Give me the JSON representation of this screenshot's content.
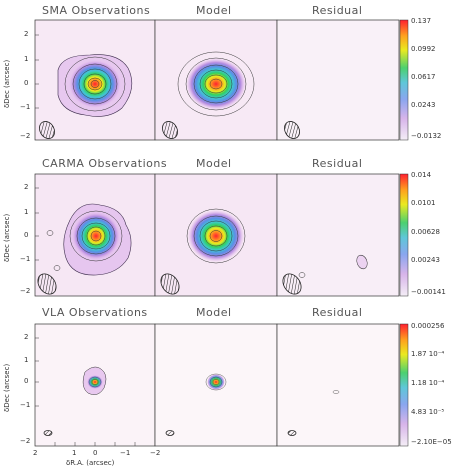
{
  "figure": {
    "col_titles_row1": [
      "SMA Observations",
      "Model",
      "Residual"
    ],
    "col_titles_row2": [
      "CARMA Observations",
      "Model",
      "Residual"
    ],
    "col_titles_row3": [
      "VLA Observations",
      "Model",
      "Residual"
    ],
    "ylabel": "δDec (arcsec)",
    "xlabel": "δR.A. (arcsec)",
    "y_ticks": [
      "2",
      "1",
      "0",
      "−1",
      "−2"
    ],
    "x_ticks": [
      "2",
      "1",
      "0",
      "−1",
      "−2"
    ],
    "colorbars": [
      [
        "0.137",
        "0.0992",
        "0.0617",
        "0.0243",
        "−0.0132"
      ],
      [
        "0.014",
        "0.0101",
        "0.00628",
        "0.00243",
        "−0.00141"
      ],
      [
        "0.000256",
        "1.87 10⁻⁴",
        "1.18 10⁻⁴",
        "4.83 10⁻⁵",
        "−2.10E−05"
      ]
    ]
  }
}
